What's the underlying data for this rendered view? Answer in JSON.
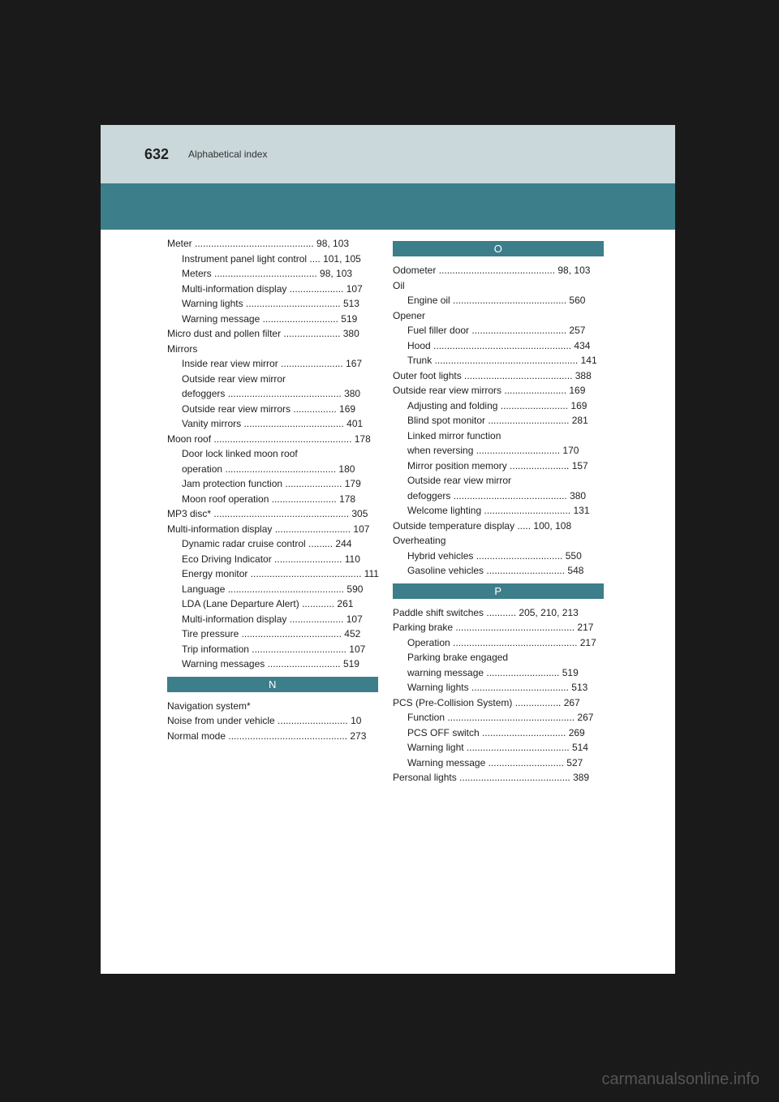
{
  "header": {
    "page_number": "632",
    "title": "Alphabetical index"
  },
  "columns": {
    "left": [
      {
        "text": "Meter ............................................ 98, 103",
        "sub": false
      },
      {
        "text": "Instrument panel light control .... 101, 105",
        "sub": true
      },
      {
        "text": "Meters ...................................... 98, 103",
        "sub": true
      },
      {
        "text": "Multi-information display .................... 107",
        "sub": true
      },
      {
        "text": "Warning lights ................................... 513",
        "sub": true
      },
      {
        "text": "Warning message ............................ 519",
        "sub": true
      },
      {
        "text": "Micro dust and pollen filter ..................... 380",
        "sub": false
      },
      {
        "text": "Mirrors",
        "sub": false
      },
      {
        "text": "Inside rear view mirror ....................... 167",
        "sub": true
      },
      {
        "text": "Outside rear view mirror",
        "sub": true
      },
      {
        "text": "defoggers .......................................... 380",
        "sub": true
      },
      {
        "text": "Outside rear view mirrors ................ 169",
        "sub": true
      },
      {
        "text": "Vanity mirrors ..................................... 401",
        "sub": true
      },
      {
        "text": "Moon roof ................................................... 178",
        "sub": false
      },
      {
        "text": "Door lock linked moon roof",
        "sub": true
      },
      {
        "text": "operation ......................................... 180",
        "sub": true
      },
      {
        "text": "Jam protection function ..................... 179",
        "sub": true
      },
      {
        "text": "Moon roof operation ........................ 178",
        "sub": true
      },
      {
        "text": "MP3 disc* .................................................. 305",
        "sub": false
      },
      {
        "text": "Multi-information display ............................ 107",
        "sub": false
      },
      {
        "text": "Dynamic radar cruise control ......... 244",
        "sub": true
      },
      {
        "text": "Eco Driving Indicator ......................... 110",
        "sub": true
      },
      {
        "text": "Energy monitor ......................................... 111",
        "sub": true
      },
      {
        "text": "Language ........................................... 590",
        "sub": true
      },
      {
        "text": "LDA (Lane Departure Alert) ............ 261",
        "sub": true
      },
      {
        "text": "Multi-information display .................... 107",
        "sub": true
      },
      {
        "text": "Tire pressure ..................................... 452",
        "sub": true
      },
      {
        "text": "Trip information ................................... 107",
        "sub": true
      },
      {
        "text": "Warning messages ........................... 519",
        "sub": true
      },
      {
        "text": "__LETTER_N__"
      },
      {
        "text": "Navigation system*",
        "sub": false
      },
      {
        "text": "Noise from under vehicle .......................... 10",
        "sub": false
      },
      {
        "text": "Normal mode ............................................ 273",
        "sub": false
      }
    ],
    "right": [
      {
        "text": "__LETTER_O__"
      },
      {
        "text": "Odometer ........................................... 98, 103",
        "sub": false
      },
      {
        "text": "Oil",
        "sub": false
      },
      {
        "text": "Engine oil .......................................... 560",
        "sub": true
      },
      {
        "text": "Opener",
        "sub": false
      },
      {
        "text": "Fuel filler door ................................... 257",
        "sub": true
      },
      {
        "text": "Hood ................................................... 434",
        "sub": true
      },
      {
        "text": "Trunk ..................................................... 141",
        "sub": true
      },
      {
        "text": "Outer foot lights ........................................ 388",
        "sub": false
      },
      {
        "text": "Outside rear view mirrors ....................... 169",
        "sub": false
      },
      {
        "text": "Adjusting and folding ......................... 169",
        "sub": true
      },
      {
        "text": "Blind spot monitor .............................. 281",
        "sub": true
      },
      {
        "text": "Linked mirror function",
        "sub": true
      },
      {
        "text": "when reversing ............................... 170",
        "sub": true
      },
      {
        "text": "Mirror position memory ...................... 157",
        "sub": true
      },
      {
        "text": "Outside rear view mirror",
        "sub": true
      },
      {
        "text": "defoggers .......................................... 380",
        "sub": true
      },
      {
        "text": "Welcome lighting ................................ 131",
        "sub": true
      },
      {
        "text": "Outside temperature display ..... 100, 108",
        "sub": false
      },
      {
        "text": "Overheating",
        "sub": false
      },
      {
        "text": "Hybrid vehicles ................................ 550",
        "sub": true
      },
      {
        "text": "Gasoline vehicles ............................. 548",
        "sub": true
      },
      {
        "text": "__LETTER_P__"
      },
      {
        "text": "Paddle shift switches ........... 205, 210, 213",
        "sub": false
      },
      {
        "text": "Parking brake ............................................ 217",
        "sub": false
      },
      {
        "text": "Operation .............................................. 217",
        "sub": true
      },
      {
        "text": "Parking brake engaged",
        "sub": true
      },
      {
        "text": "warning message ........................... 519",
        "sub": true
      },
      {
        "text": "Warning lights .................................... 513",
        "sub": true
      },
      {
        "text": "PCS (Pre-Collision System) ................. 267",
        "sub": false
      },
      {
        "text": "Function ............................................... 267",
        "sub": true
      },
      {
        "text": "PCS OFF switch ............................... 269",
        "sub": true
      },
      {
        "text": "Warning light ...................................... 514",
        "sub": true
      },
      {
        "text": "Warning message ............................ 527",
        "sub": true
      },
      {
        "text": "Personal lights ......................................... 389",
        "sub": false
      }
    ]
  },
  "letters": {
    "N": "N",
    "O": "O",
    "P": "P"
  },
  "watermark": "carmanualsonline.info",
  "colors": {
    "page_bg": "#1a1a1a",
    "page_white": "#ffffff",
    "top_band": "#cad8db",
    "mid_band": "#3c7e8a",
    "letter_bar": "#3c7e8a",
    "letter_text": "#ffffff"
  }
}
